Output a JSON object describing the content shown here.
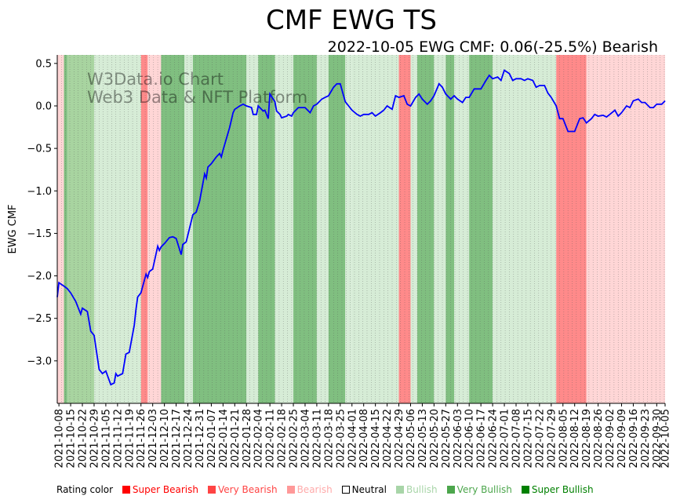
{
  "chart_data": {
    "type": "line",
    "title": "CMF EWG TS",
    "subtitle": "2022-10-05 EWG CMF: 0.06(-25.5%) Bearish",
    "ylabel": "EWG CMF",
    "ylim": [
      -3.5,
      0.6
    ],
    "yticks": [
      0.5,
      0.0,
      -0.5,
      -1.0,
      -1.5,
      -2.0,
      -2.5,
      -3.0
    ],
    "xrange": [
      "2021-10-07",
      "2022-10-05"
    ],
    "xticks": [
      "2021-10-08",
      "2021-10-15",
      "2021-10-22",
      "2021-10-29",
      "2021-11-05",
      "2021-11-12",
      "2021-11-19",
      "2021-11-26",
      "2021-12-03",
      "2021-12-10",
      "2021-12-17",
      "2021-12-24",
      "2021-12-31",
      "2022-01-07",
      "2022-01-14",
      "2022-01-21",
      "2022-01-28",
      "2022-02-04",
      "2022-02-11",
      "2022-02-18",
      "2022-02-25",
      "2022-03-04",
      "2022-03-11",
      "2022-03-18",
      "2022-03-25",
      "2022-04-01",
      "2022-04-08",
      "2022-04-15",
      "2022-04-22",
      "2022-04-29",
      "2022-05-06",
      "2022-05-13",
      "2022-05-20",
      "2022-05-27",
      "2022-06-03",
      "2022-06-10",
      "2022-06-17",
      "2022-06-24",
      "2022-07-01",
      "2022-07-08",
      "2022-07-15",
      "2022-07-22",
      "2022-07-29",
      "2022-08-05",
      "2022-08-12",
      "2022-08-19",
      "2022-08-26",
      "2022-09-02",
      "2022-09-09",
      "2022-09-16",
      "2022-09-23",
      "2022-09-30",
      "2022-10-05"
    ],
    "series": [
      {
        "color": "#0000ff",
        "points": [
          [
            "2021-10-07",
            -2.25
          ],
          [
            "2021-10-08",
            -2.08
          ],
          [
            "2021-10-11",
            -2.12
          ],
          [
            "2021-10-13",
            -2.15
          ],
          [
            "2021-10-15",
            -2.2
          ],
          [
            "2021-10-18",
            -2.3
          ],
          [
            "2021-10-20",
            -2.4
          ],
          [
            "2021-10-21",
            -2.45
          ],
          [
            "2021-10-22",
            -2.38
          ],
          [
            "2021-10-25",
            -2.42
          ],
          [
            "2021-10-27",
            -2.65
          ],
          [
            "2021-10-29",
            -2.7
          ],
          [
            "2021-11-01",
            -3.1
          ],
          [
            "2021-11-03",
            -3.15
          ],
          [
            "2021-11-05",
            -3.12
          ],
          [
            "2021-11-08",
            -3.28
          ],
          [
            "2021-11-10",
            -3.26
          ],
          [
            "2021-11-11",
            -3.15
          ],
          [
            "2021-11-12",
            -3.18
          ],
          [
            "2021-11-15",
            -3.15
          ],
          [
            "2021-11-17",
            -2.92
          ],
          [
            "2021-11-19",
            -2.9
          ],
          [
            "2021-11-22",
            -2.58
          ],
          [
            "2021-11-23",
            -2.4
          ],
          [
            "2021-11-24",
            -2.25
          ],
          [
            "2021-11-26",
            -2.2
          ],
          [
            "2021-11-29",
            -1.98
          ],
          [
            "2021-11-30",
            -2.02
          ],
          [
            "2021-12-01",
            -1.95
          ],
          [
            "2021-12-03",
            -1.92
          ],
          [
            "2021-12-06",
            -1.65
          ],
          [
            "2021-12-07",
            -1.7
          ],
          [
            "2021-12-08",
            -1.66
          ],
          [
            "2021-12-10",
            -1.62
          ],
          [
            "2021-12-13",
            -1.55
          ],
          [
            "2021-12-15",
            -1.54
          ],
          [
            "2021-12-17",
            -1.56
          ],
          [
            "2021-12-20",
            -1.75
          ],
          [
            "2021-12-21",
            -1.63
          ],
          [
            "2021-12-23",
            -1.6
          ],
          [
            "2021-12-24",
            -1.52
          ],
          [
            "2021-12-27",
            -1.28
          ],
          [
            "2021-12-29",
            -1.25
          ],
          [
            "2021-12-31",
            -1.12
          ],
          [
            "2022-01-03",
            -0.8
          ],
          [
            "2022-01-04",
            -0.85
          ],
          [
            "2022-01-05",
            -0.72
          ],
          [
            "2022-01-07",
            -0.68
          ],
          [
            "2022-01-10",
            -0.6
          ],
          [
            "2022-01-12",
            -0.56
          ],
          [
            "2022-01-13",
            -0.6
          ],
          [
            "2022-01-14",
            -0.52
          ],
          [
            "2022-01-18",
            -0.25
          ],
          [
            "2022-01-20",
            -0.08
          ],
          [
            "2022-01-21",
            -0.04
          ],
          [
            "2022-01-24",
            0.0
          ],
          [
            "2022-01-26",
            0.02
          ],
          [
            "2022-01-28",
            0.0
          ],
          [
            "2022-01-31",
            -0.02
          ],
          [
            "2022-02-01",
            -0.1
          ],
          [
            "2022-02-03",
            -0.1
          ],
          [
            "2022-02-04",
            0.0
          ],
          [
            "2022-02-07",
            -0.06
          ],
          [
            "2022-02-08",
            -0.05
          ],
          [
            "2022-02-10",
            -0.15
          ],
          [
            "2022-02-11",
            0.14
          ],
          [
            "2022-02-14",
            0.05
          ],
          [
            "2022-02-15",
            -0.06
          ],
          [
            "2022-02-17",
            -0.1
          ],
          [
            "2022-02-18",
            -0.14
          ],
          [
            "2022-02-21",
            -0.12
          ],
          [
            "2022-02-22",
            -0.1
          ],
          [
            "2022-02-24",
            -0.12
          ],
          [
            "2022-02-25",
            -0.08
          ],
          [
            "2022-02-28",
            -0.02
          ],
          [
            "2022-03-03",
            -0.02
          ],
          [
            "2022-03-04",
            -0.02
          ],
          [
            "2022-03-07",
            -0.08
          ],
          [
            "2022-03-09",
            0.0
          ],
          [
            "2022-03-11",
            0.02
          ],
          [
            "2022-03-14",
            0.08
          ],
          [
            "2022-03-16",
            0.1
          ],
          [
            "2022-03-18",
            0.12
          ],
          [
            "2022-03-21",
            0.22
          ],
          [
            "2022-03-23",
            0.26
          ],
          [
            "2022-03-25",
            0.26
          ],
          [
            "2022-03-28",
            0.05
          ],
          [
            "2022-03-30",
            0.0
          ],
          [
            "2022-04-01",
            -0.05
          ],
          [
            "2022-04-04",
            -0.1
          ],
          [
            "2022-04-06",
            -0.12
          ],
          [
            "2022-04-08",
            -0.1
          ],
          [
            "2022-04-11",
            -0.1
          ],
          [
            "2022-04-13",
            -0.08
          ],
          [
            "2022-04-15",
            -0.12
          ],
          [
            "2022-04-18",
            -0.08
          ],
          [
            "2022-04-20",
            -0.05
          ],
          [
            "2022-04-22",
            0.0
          ],
          [
            "2022-04-25",
            -0.04
          ],
          [
            "2022-04-27",
            0.12
          ],
          [
            "2022-04-29",
            0.1
          ],
          [
            "2022-05-02",
            0.12
          ],
          [
            "2022-05-04",
            0.02
          ],
          [
            "2022-05-06",
            0.0
          ],
          [
            "2022-05-09",
            0.1
          ],
          [
            "2022-05-11",
            0.14
          ],
          [
            "2022-05-13",
            0.08
          ],
          [
            "2022-05-16",
            0.02
          ],
          [
            "2022-05-18",
            0.06
          ],
          [
            "2022-05-20",
            0.12
          ],
          [
            "2022-05-23",
            0.26
          ],
          [
            "2022-05-25",
            0.22
          ],
          [
            "2022-05-27",
            0.14
          ],
          [
            "2022-05-30",
            0.08
          ],
          [
            "2022-06-01",
            0.12
          ],
          [
            "2022-06-03",
            0.08
          ],
          [
            "2022-06-06",
            0.04
          ],
          [
            "2022-06-08",
            0.1
          ],
          [
            "2022-06-10",
            0.1
          ],
          [
            "2022-06-13",
            0.2
          ],
          [
            "2022-06-15",
            0.2
          ],
          [
            "2022-06-17",
            0.2
          ],
          [
            "2022-06-20",
            0.3
          ],
          [
            "2022-06-22",
            0.36
          ],
          [
            "2022-06-24",
            0.32
          ],
          [
            "2022-06-27",
            0.34
          ],
          [
            "2022-06-29",
            0.3
          ],
          [
            "2022-07-01",
            0.42
          ],
          [
            "2022-07-04",
            0.38
          ],
          [
            "2022-07-06",
            0.3
          ],
          [
            "2022-07-08",
            0.32
          ],
          [
            "2022-07-11",
            0.32
          ],
          [
            "2022-07-13",
            0.3
          ],
          [
            "2022-07-15",
            0.32
          ],
          [
            "2022-07-18",
            0.3
          ],
          [
            "2022-07-20",
            0.22
          ],
          [
            "2022-07-22",
            0.24
          ],
          [
            "2022-07-25",
            0.24
          ],
          [
            "2022-07-27",
            0.15
          ],
          [
            "2022-07-29",
            0.1
          ],
          [
            "2022-08-01",
            0.0
          ],
          [
            "2022-08-03",
            -0.15
          ],
          [
            "2022-08-05",
            -0.15
          ],
          [
            "2022-08-08",
            -0.3
          ],
          [
            "2022-08-10",
            -0.3
          ],
          [
            "2022-08-12",
            -0.3
          ],
          [
            "2022-08-15",
            -0.15
          ],
          [
            "2022-08-17",
            -0.14
          ],
          [
            "2022-08-19",
            -0.2
          ],
          [
            "2022-08-22",
            -0.15
          ],
          [
            "2022-08-24",
            -0.1
          ],
          [
            "2022-08-26",
            -0.12
          ],
          [
            "2022-08-29",
            -0.11
          ],
          [
            "2022-08-31",
            -0.13
          ],
          [
            "2022-09-02",
            -0.1
          ],
          [
            "2022-09-05",
            -0.05
          ],
          [
            "2022-09-07",
            -0.12
          ],
          [
            "2022-09-09",
            -0.08
          ],
          [
            "2022-09-12",
            0.0
          ],
          [
            "2022-09-14",
            -0.02
          ],
          [
            "2022-09-16",
            0.06
          ],
          [
            "2022-09-19",
            0.08
          ],
          [
            "2022-09-21",
            0.04
          ],
          [
            "2022-09-23",
            0.04
          ],
          [
            "2022-09-26",
            -0.02
          ],
          [
            "2022-09-28",
            -0.02
          ],
          [
            "2022-09-30",
            0.02
          ],
          [
            "2022-10-03",
            0.02
          ],
          [
            "2022-10-05",
            0.06
          ]
        ]
      }
    ],
    "rating_bands": [
      {
        "start": "2021-10-07",
        "end": "2021-10-11",
        "rating": "Bearish"
      },
      {
        "start": "2021-10-11",
        "end": "2021-10-13",
        "rating": "Very Bullish"
      },
      {
        "start": "2021-10-13",
        "end": "2021-10-29",
        "rating": "Bullish"
      },
      {
        "start": "2021-10-29",
        "end": "2021-11-26",
        "rating": "Neutral-Bullish"
      },
      {
        "start": "2021-11-26",
        "end": "2021-11-30",
        "rating": "Very Bearish"
      },
      {
        "start": "2021-11-30",
        "end": "2021-12-08",
        "rating": "Bearish"
      },
      {
        "start": "2021-12-08",
        "end": "2021-12-22",
        "rating": "Very Bullish"
      },
      {
        "start": "2021-12-22",
        "end": "2021-12-27",
        "rating": "Neutral-Bullish"
      },
      {
        "start": "2021-12-27",
        "end": "2022-01-28",
        "rating": "Very Bullish"
      },
      {
        "start": "2022-01-28",
        "end": "2022-02-04",
        "rating": "Neutral-Bullish"
      },
      {
        "start": "2022-02-04",
        "end": "2022-02-14",
        "rating": "Very Bullish"
      },
      {
        "start": "2022-02-14",
        "end": "2022-02-25",
        "rating": "Neutral-Bullish"
      },
      {
        "start": "2022-02-25",
        "end": "2022-03-11",
        "rating": "Very Bullish"
      },
      {
        "start": "2022-03-11",
        "end": "2022-03-18",
        "rating": "Neutral-Bullish"
      },
      {
        "start": "2022-03-18",
        "end": "2022-03-28",
        "rating": "Very Bullish"
      },
      {
        "start": "2022-03-28",
        "end": "2022-04-01",
        "rating": "Neutral-Bullish"
      },
      {
        "start": "2022-04-01",
        "end": "2022-04-29",
        "rating": "Neutral-Bullish"
      },
      {
        "start": "2022-04-29",
        "end": "2022-05-06",
        "rating": "Very Bearish"
      },
      {
        "start": "2022-05-06",
        "end": "2022-05-10",
        "rating": "Neutral-Bullish"
      },
      {
        "start": "2022-05-10",
        "end": "2022-05-20",
        "rating": "Very Bullish"
      },
      {
        "start": "2022-05-20",
        "end": "2022-05-27",
        "rating": "Neutral-Bullish"
      },
      {
        "start": "2022-05-27",
        "end": "2022-06-01",
        "rating": "Very Bullish"
      },
      {
        "start": "2022-06-01",
        "end": "2022-06-10",
        "rating": "Neutral-Bullish"
      },
      {
        "start": "2022-06-10",
        "end": "2022-06-24",
        "rating": "Very Bullish"
      },
      {
        "start": "2022-06-24",
        "end": "2022-07-22",
        "rating": "Neutral-Bullish"
      },
      {
        "start": "2022-07-22",
        "end": "2022-08-01",
        "rating": "Neutral-Bullish"
      },
      {
        "start": "2022-08-01",
        "end": "2022-08-19",
        "rating": "Very Bearish"
      },
      {
        "start": "2022-08-19",
        "end": "2022-08-26",
        "rating": "Bearish"
      },
      {
        "start": "2022-08-26",
        "end": "2022-10-05",
        "rating": "Bearish"
      }
    ]
  },
  "watermark": {
    "line1": "W3Data.io Chart",
    "line2": "Web3 Data & NFT Platform"
  },
  "legend": {
    "label": "Rating color",
    "items": [
      {
        "label": "Super Bearish",
        "color": "#ff0000",
        "text_color": "#ff0000"
      },
      {
        "label": "Very Bearish",
        "color": "#ff4444",
        "text_color": "#ff4444"
      },
      {
        "label": "Bearish",
        "color": "#ff9999",
        "text_color": "#ffaaaa"
      },
      {
        "label": "Neutral",
        "color": "#ffffff",
        "text_color": "#000000"
      },
      {
        "label": "Bullish",
        "color": "#a8d5a8",
        "text_color": "#a8d5a8"
      },
      {
        "label": "Very Bullish",
        "color": "#4ca64c",
        "text_color": "#4ca64c"
      },
      {
        "label": "Super Bullish",
        "color": "#008000",
        "text_color": "#008000"
      }
    ]
  },
  "band_colors": {
    "Very Bearish": "#ff8a8a",
    "Bearish": "#ffd6d6",
    "Neutral-Bullish": "#d6ecd6",
    "Bullish": "#a8d4a0",
    "Very Bullish": "#80bf80"
  }
}
